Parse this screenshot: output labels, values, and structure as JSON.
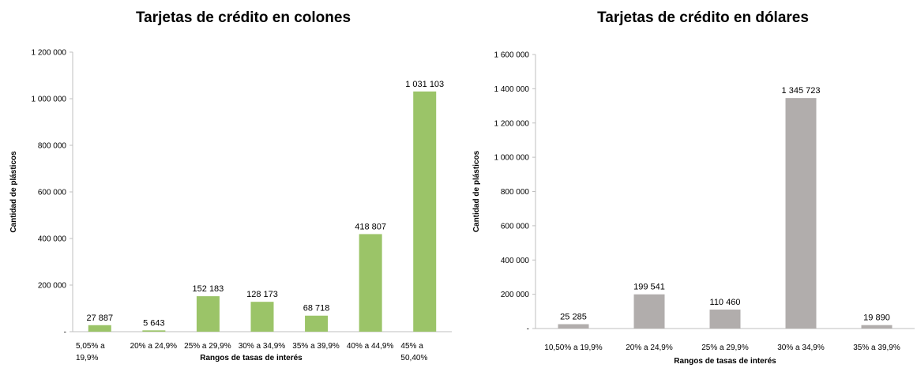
{
  "chart_data": [
    {
      "type": "bar",
      "title": "Tarjetas de crédito en colones",
      "xlabel": "Rangos de tasas de interés",
      "ylabel": "Cantidad de plásticos",
      "ylim": [
        0,
        1200000
      ],
      "y_ticks": [
        "-",
        "200 000",
        "400 000",
        "600 000",
        "800 000",
        "1 000 000",
        "1 200 000"
      ],
      "y_tick_values": [
        0,
        200000,
        400000,
        600000,
        800000,
        1000000,
        1200000
      ],
      "categories": [
        [
          "5,05% a",
          "19,9%"
        ],
        [
          "20% a   24,9%"
        ],
        [
          "25% a   29,9%"
        ],
        [
          "30% a   34,9%"
        ],
        [
          "35% a   39,9%"
        ],
        [
          "40% a   44,9%"
        ],
        [
          "45% a",
          "50,40%"
        ]
      ],
      "values": [
        27887,
        5643,
        152183,
        128173,
        68718,
        418807,
        1031103
      ],
      "data_labels": [
        "27 887",
        "5 643",
        "152 183",
        "128 173",
        "68 718",
        "418 807",
        "1 031 103"
      ],
      "color": "#9bc468",
      "grid": false,
      "legend": "none"
    },
    {
      "type": "bar",
      "title": "Tarjetas de crédito en dólares",
      "xlabel": "Rangos de tasas de interés",
      "ylabel": "Cantidad de plásticos",
      "ylim": [
        0,
        1600000
      ],
      "y_ticks": [
        "-",
        "200 000",
        "400 000",
        "600 000",
        "800 000",
        "1 000 000",
        "1 200 000",
        "1 400 000",
        "1 600 000"
      ],
      "y_tick_values": [
        0,
        200000,
        400000,
        600000,
        800000,
        1000000,
        1200000,
        1400000,
        1600000
      ],
      "categories": [
        [
          "10,50% a 19,9%"
        ],
        [
          "20% a 24,9%"
        ],
        [
          "25% a 29,9%"
        ],
        [
          "30% a 34,9%"
        ],
        [
          "35% a 39,9%"
        ]
      ],
      "values": [
        25285,
        199541,
        110460,
        1345723,
        19890
      ],
      "data_labels": [
        "25 285",
        "199 541",
        "110 460",
        "1 345 723",
        "19 890"
      ],
      "color": "#b1adac",
      "grid": false,
      "legend": "none"
    }
  ]
}
